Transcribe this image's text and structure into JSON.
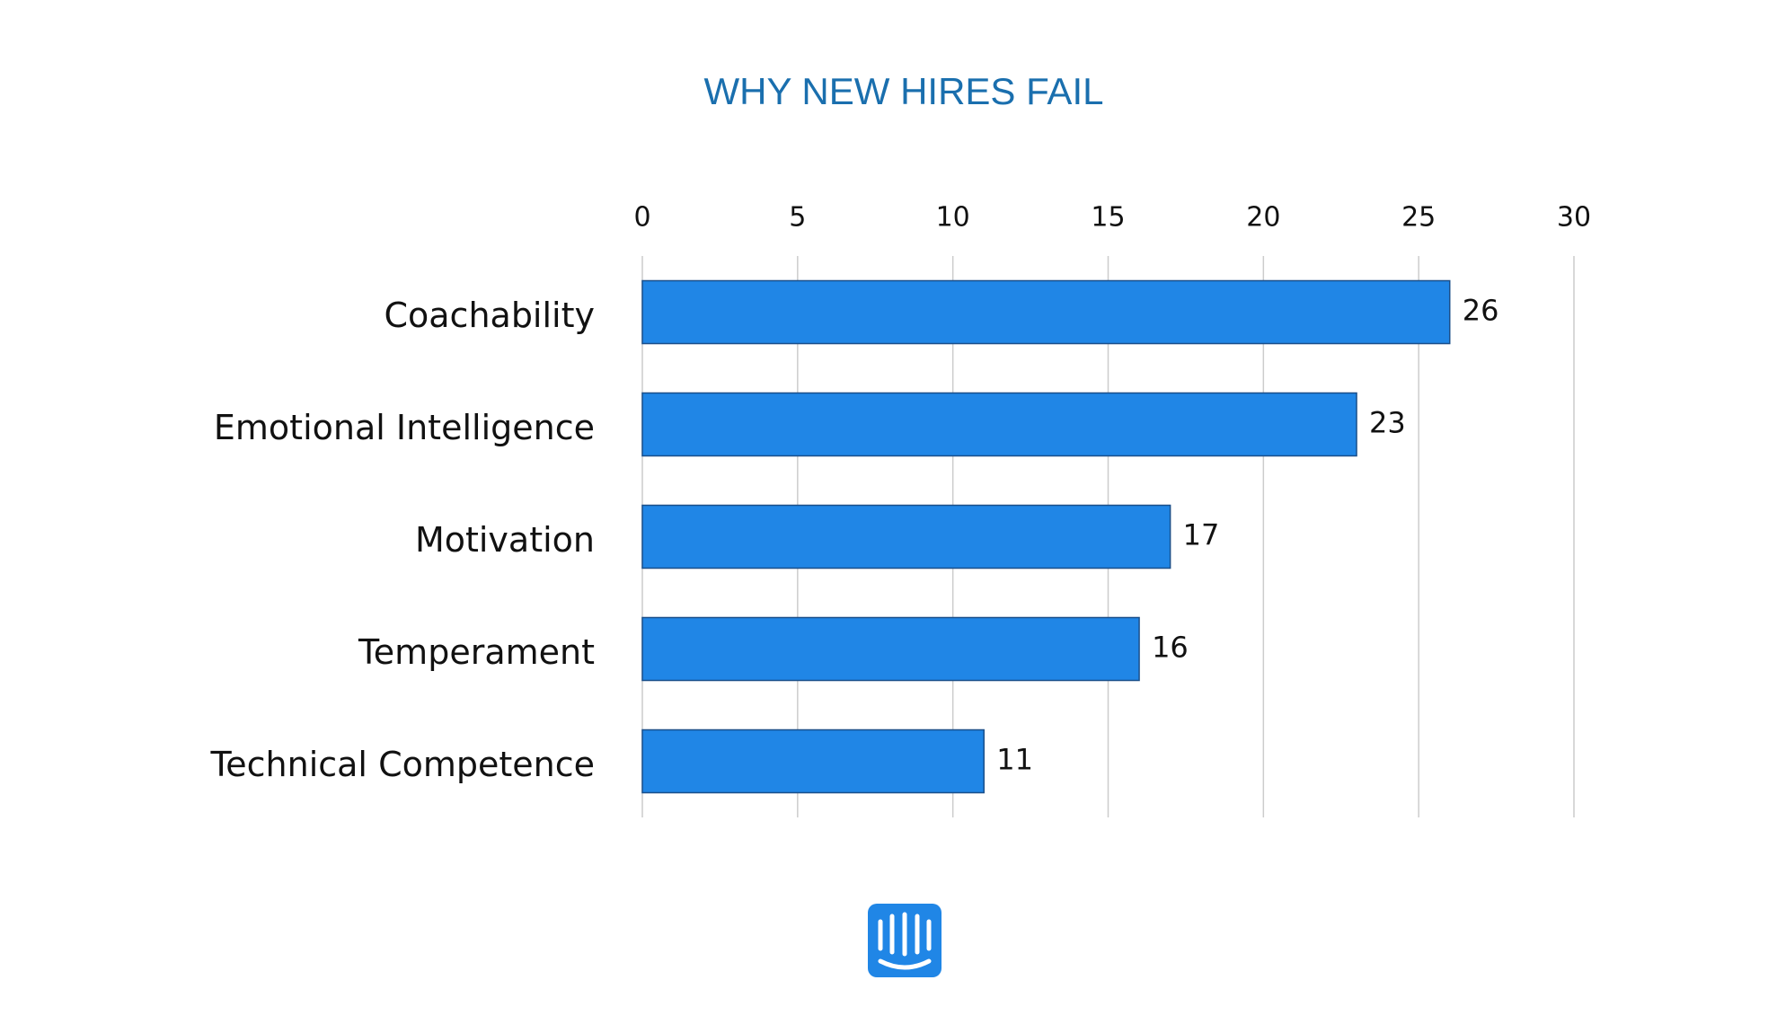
{
  "chart_data": {
    "type": "bar",
    "orientation": "horizontal",
    "title": "WHY NEW HIRES FAIL",
    "categories": [
      "Coachability",
      "Emotional Intelligence",
      "Motivation",
      "Temperament",
      "Technical Competence"
    ],
    "values": [
      26,
      23,
      17,
      16,
      11
    ],
    "color": "#2086e6",
    "xlim": [
      0,
      30
    ],
    "xticks": [
      0,
      5,
      10,
      15,
      20,
      25,
      30
    ],
    "grid": true
  }
}
